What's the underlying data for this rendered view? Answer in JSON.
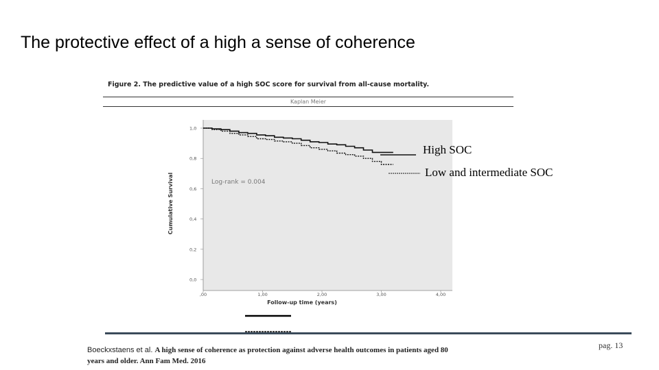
{
  "slide": {
    "title": "The protective effect of a high a sense of coherence",
    "page": "pag. 13"
  },
  "figure": {
    "caption": "Figure 2. The predictive  value of a high SOC score for survival from all-cause mortality.",
    "header": "Kaplan Meier",
    "annotation": "Log-rank = 0.004"
  },
  "citation": {
    "authors": "Boeckxstaens et al.",
    "title_line1": "A high sense of coherence as protection against adverse health outcomes in patients aged 80",
    "title_line2": "years and older. Ann Fam Med.  2016"
  },
  "colors": {
    "plot_background": "#e8e8e8",
    "footer_bar": "#3a4a5a",
    "curve": "#111111"
  },
  "chart_data": {
    "type": "line",
    "xlabel": "Follow-up time (years)",
    "ylabel": "Cumulative Survival",
    "xlim": [
      0,
      4
    ],
    "ylim": [
      0,
      1
    ],
    "x_ticks": [
      ",00",
      "1,00",
      "2,00",
      "3,00",
      "4,00"
    ],
    "y_ticks": [
      "0,0",
      "0,2",
      "0,4",
      "0,6",
      "0,8",
      "1,0"
    ],
    "grid": false,
    "legend_position": "right",
    "series": [
      {
        "name": "High SOC",
        "style": "solid",
        "x": [
          0,
          0.15,
          0.3,
          0.45,
          0.6,
          0.75,
          0.9,
          1.05,
          1.2,
          1.35,
          1.5,
          1.65,
          1.8,
          1.95,
          2.1,
          2.25,
          2.4,
          2.55,
          2.7,
          2.85,
          3.0,
          3.2
        ],
        "y": [
          1.0,
          0.995,
          0.99,
          0.98,
          0.97,
          0.965,
          0.955,
          0.95,
          0.94,
          0.935,
          0.93,
          0.92,
          0.91,
          0.905,
          0.895,
          0.89,
          0.88,
          0.87,
          0.855,
          0.84,
          0.84,
          0.84
        ]
      },
      {
        "name": "Low and intermediate SOC",
        "style": "dashed",
        "x": [
          0,
          0.15,
          0.3,
          0.45,
          0.6,
          0.75,
          0.9,
          1.05,
          1.2,
          1.35,
          1.5,
          1.65,
          1.8,
          1.95,
          2.1,
          2.25,
          2.4,
          2.55,
          2.7,
          2.85,
          3.0,
          3.2
        ],
        "y": [
          1.0,
          0.99,
          0.98,
          0.965,
          0.955,
          0.945,
          0.93,
          0.925,
          0.915,
          0.91,
          0.9,
          0.885,
          0.87,
          0.86,
          0.85,
          0.835,
          0.825,
          0.815,
          0.8,
          0.78,
          0.76,
          0.76
        ]
      }
    ]
  }
}
